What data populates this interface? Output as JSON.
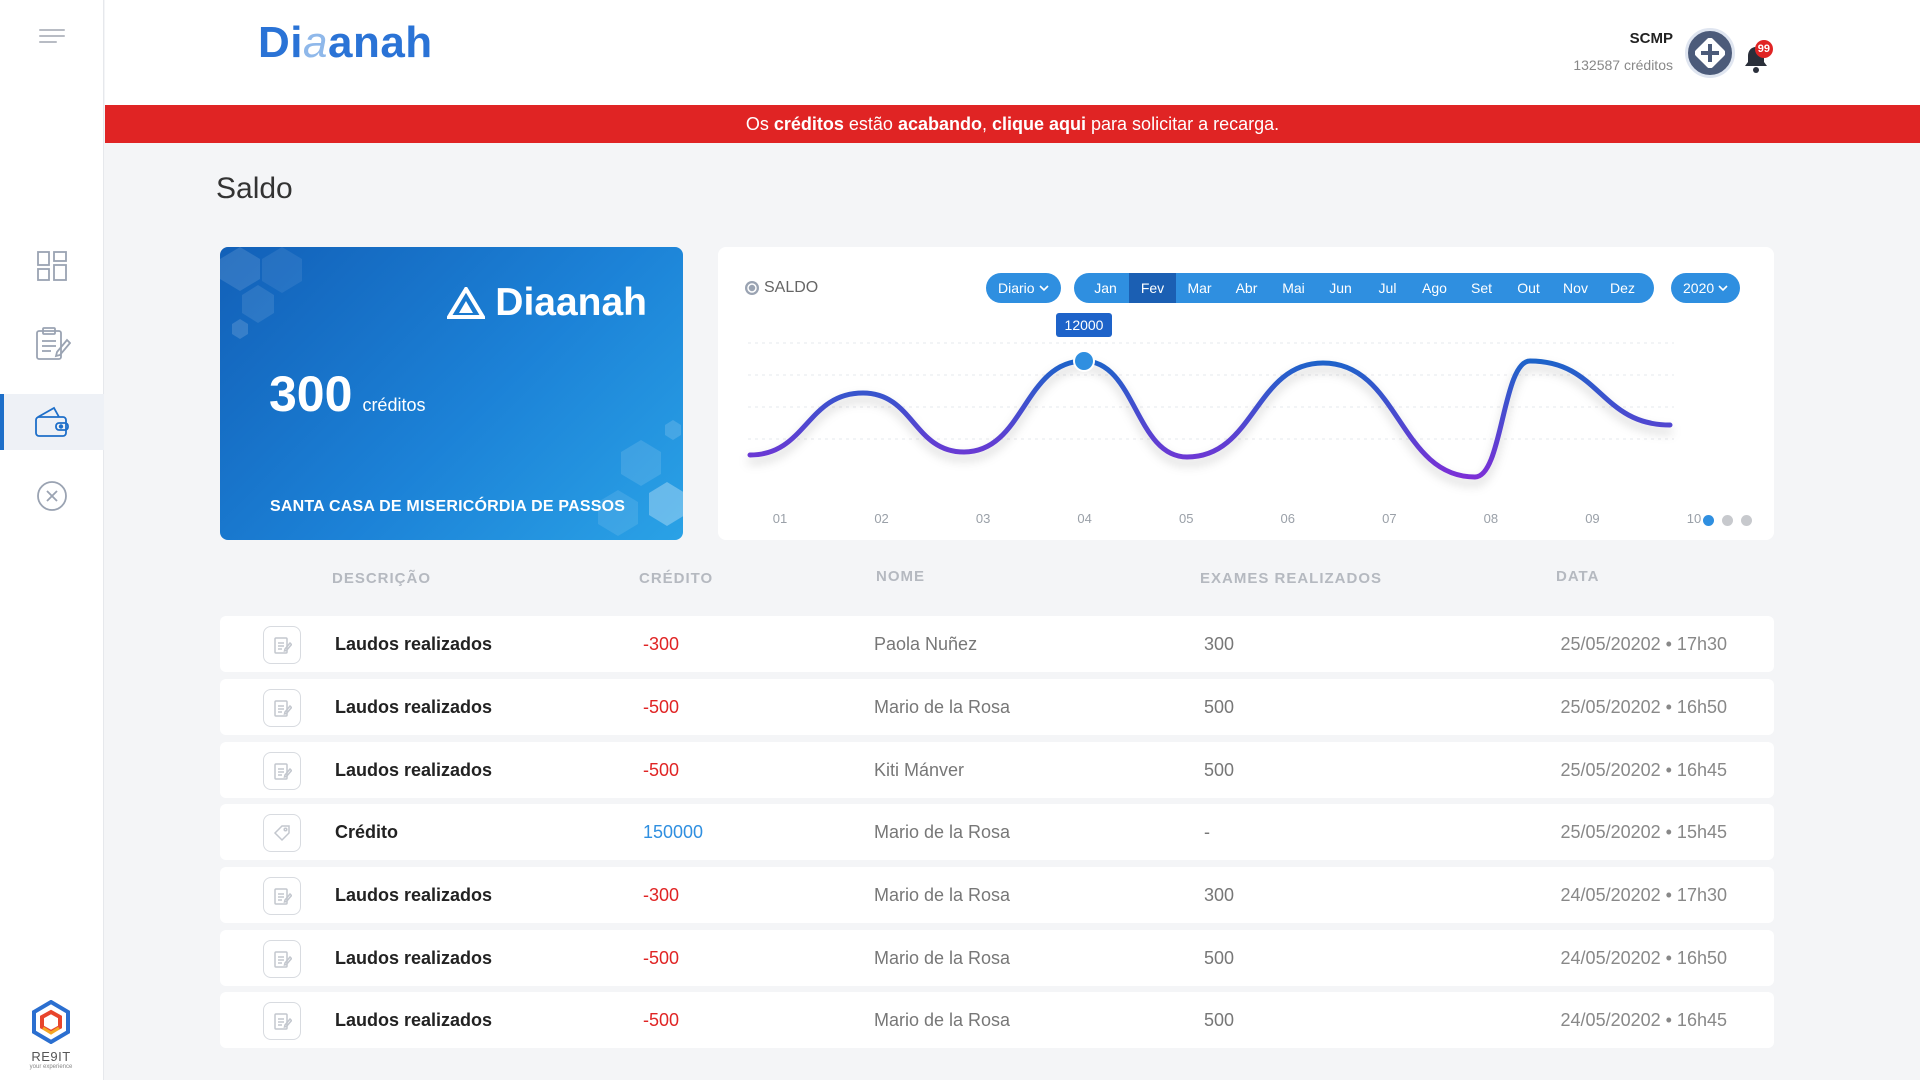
{
  "app": {
    "brand_part1": "Di",
    "brand_part2": "a",
    "brand_part3": "anah"
  },
  "user": {
    "org": "SCMP",
    "credits": "132587 créditos",
    "notifications": "99"
  },
  "alert": {
    "t1": "Os ",
    "b1": "créditos",
    "t2": " estão ",
    "b2": "acabando",
    "t3": ", ",
    "b3": "clique aqui",
    "t4": " para solicitar a recarga."
  },
  "page": {
    "title": "Saldo"
  },
  "card": {
    "brand": "Diaanah",
    "amount": "300",
    "unit": "créditos",
    "org": "SANTA CASA DE MISERICÓRDIA DE PASSOS"
  },
  "chart_panel": {
    "title": "SALDO",
    "period": "Diario",
    "months": [
      "Jan",
      "Fev",
      "Mar",
      "Abr",
      "Mai",
      "Jun",
      "Jul",
      "Ago",
      "Set",
      "Out",
      "Nov",
      "Dez"
    ],
    "selected_month": "Fev",
    "year": "2020",
    "tooltip": "12000",
    "colors": {
      "line_start": "#7b2fd6",
      "line_end": "#1e63c9",
      "accent": "#2f8fe0"
    }
  },
  "chart_data": {
    "type": "line",
    "x": [
      "01",
      "02",
      "03",
      "04",
      "05",
      "06",
      "07",
      "08",
      "09",
      "10"
    ],
    "highlight": {
      "x": "04",
      "value": 12000
    }
  },
  "table": {
    "headers": {
      "descricao": "DESCRIÇÃO",
      "credito": "CRÉDITO",
      "nome": "NOME",
      "exames": "EXAMES REALIZADOS",
      "data": "DATA"
    },
    "rows": [
      {
        "icon": "report-icon",
        "descricao": "Laudos realizados",
        "credito": "-300",
        "kind": "neg",
        "nome": "Paola Nuñez",
        "exames": "300",
        "data": "25/05/20202 • 17h30"
      },
      {
        "icon": "report-icon",
        "descricao": "Laudos realizados",
        "credito": "-500",
        "kind": "neg",
        "nome": "Mario de la Rosa",
        "exames": "500",
        "data": "25/05/20202 • 16h50"
      },
      {
        "icon": "report-icon",
        "descricao": "Laudos realizados",
        "credito": "-500",
        "kind": "neg",
        "nome": "Kiti Mánver",
        "exames": "500",
        "data": "25/05/20202 • 16h45"
      },
      {
        "icon": "tag-icon",
        "descricao": "Crédito",
        "credito": "150000",
        "kind": "pos",
        "nome": "Mario de la Rosa",
        "exames": "-",
        "data": "25/05/20202 • 15h45"
      },
      {
        "icon": "report-icon",
        "descricao": "Laudos realizados",
        "credito": "-300",
        "kind": "neg",
        "nome": "Mario de la Rosa",
        "exames": "300",
        "data": "24/05/20202 • 17h30"
      },
      {
        "icon": "report-icon",
        "descricao": "Laudos realizados",
        "credito": "-500",
        "kind": "neg",
        "nome": "Mario de la Rosa",
        "exames": "500",
        "data": "24/05/20202 • 16h50"
      },
      {
        "icon": "report-icon",
        "descricao": "Laudos realizados",
        "credito": "-500",
        "kind": "neg",
        "nome": "Mario de la Rosa",
        "exames": "500",
        "data": "24/05/20202 • 16h45"
      }
    ]
  },
  "sidebar": {
    "items": [
      {
        "icon": "dashboard-icon"
      },
      {
        "icon": "reports-icon"
      },
      {
        "icon": "wallet-icon",
        "active": true
      },
      {
        "icon": "close-circle-icon"
      }
    ],
    "footer_logo_text": "RE9IT",
    "footer_logo_sub": "your experience"
  }
}
